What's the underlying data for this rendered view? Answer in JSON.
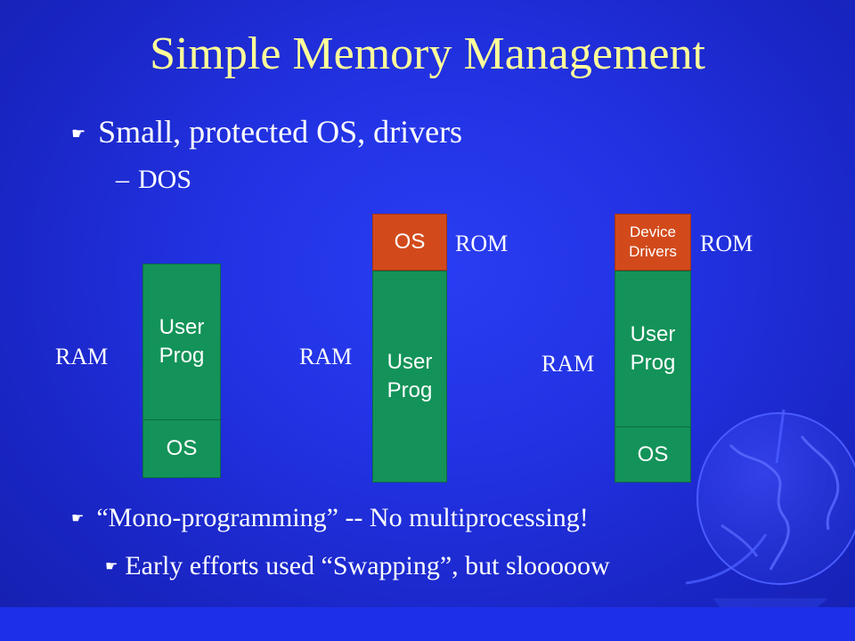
{
  "slide": {
    "title": "Simple Memory Management",
    "bullets": [
      {
        "glyph": "☛",
        "text": "Small, protected OS, drivers"
      },
      {
        "glyph": "–",
        "text": "DOS"
      },
      {
        "glyph": "☛",
        "text": "“Mono-programming”  -- No multiprocessing!"
      },
      {
        "glyph": "☛",
        "text": "Early efforts used “Swapping”, but slooooow"
      }
    ]
  },
  "diagrams": [
    {
      "ram_label": "RAM",
      "blocks": [
        {
          "text": "User\nProg"
        },
        {
          "text": "OS"
        }
      ]
    },
    {
      "ram_label": "RAM",
      "rom_label": "ROM",
      "blocks": [
        {
          "text": "OS"
        },
        {
          "text": "User\nProg"
        }
      ]
    },
    {
      "ram_label": "RAM",
      "rom_label": "ROM",
      "blocks": [
        {
          "text": "Device\nDrivers"
        },
        {
          "text": "User\nProg"
        },
        {
          "text": "OS"
        }
      ]
    }
  ],
  "colors": {
    "background": "#2233e4",
    "title": "#ffff99",
    "ram_block": "#139359",
    "rom_block": "#d24a1c"
  }
}
